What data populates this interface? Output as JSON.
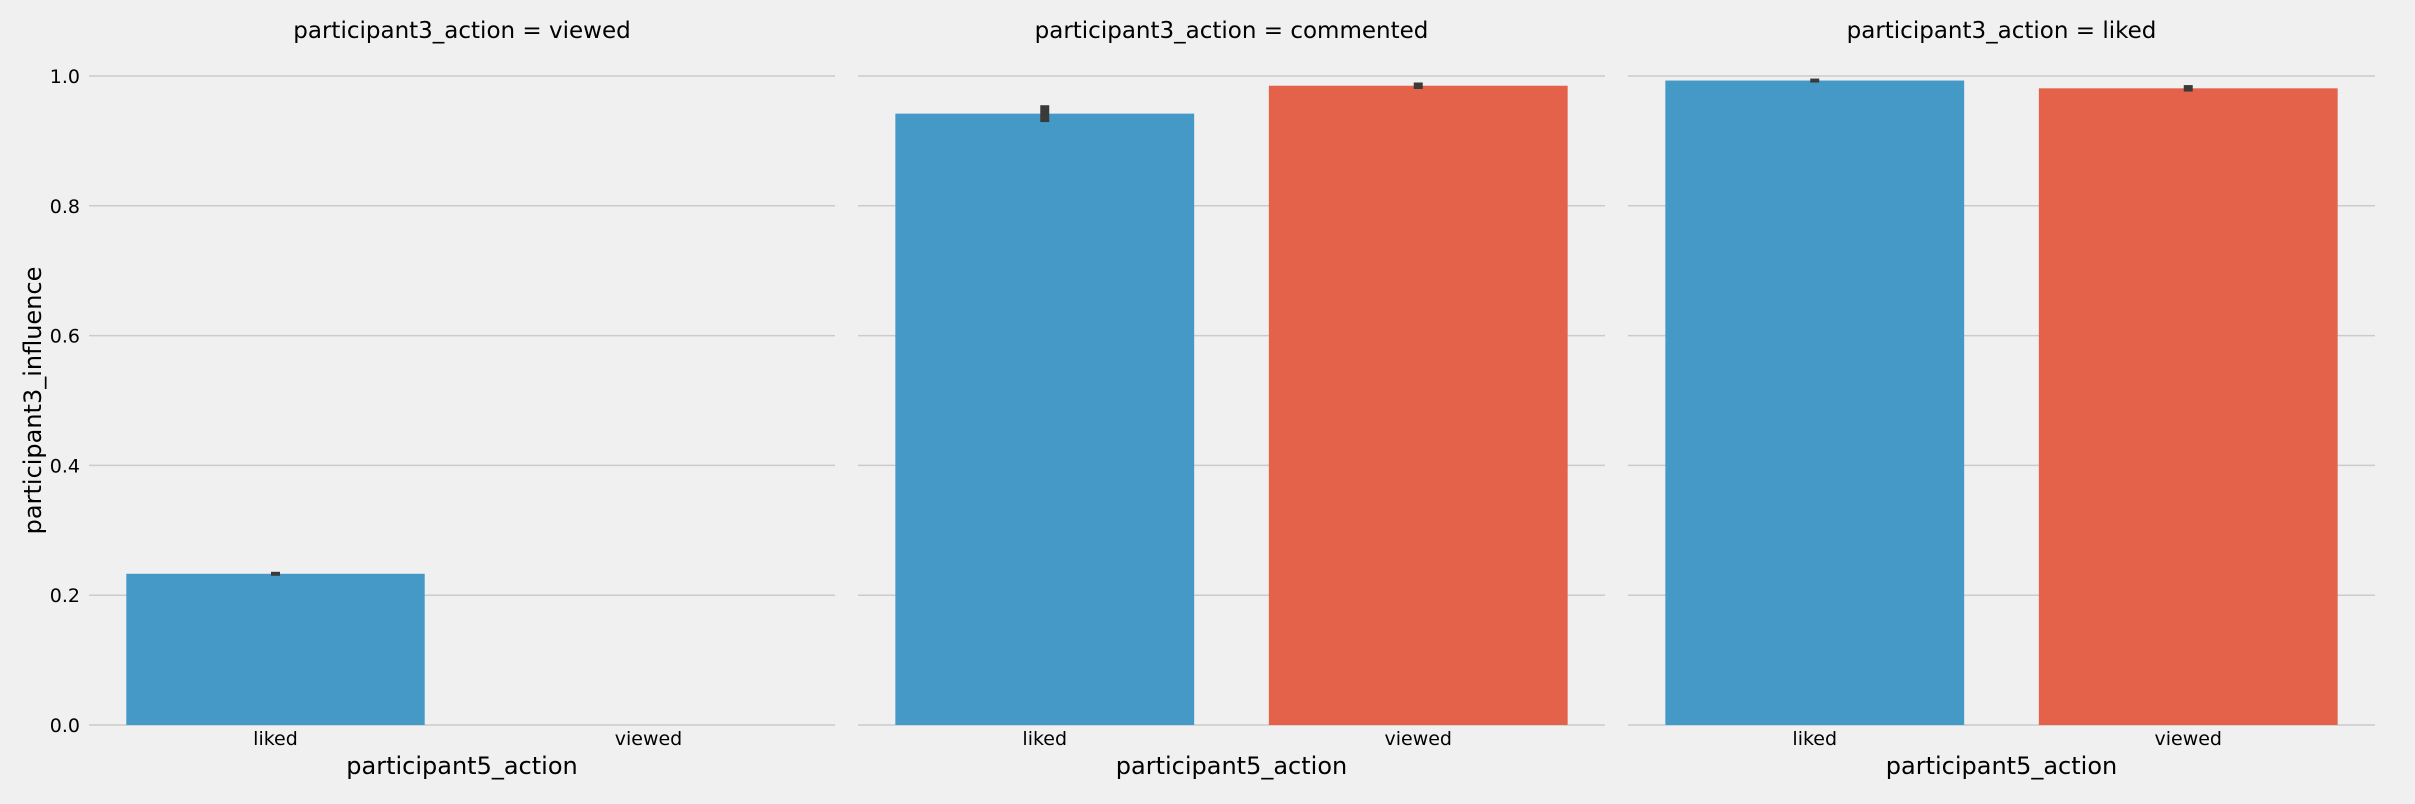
{
  "chart_data": {
    "type": "bar",
    "ylabel": "participant3_influence",
    "xlabel": "participant5_action",
    "ylim": [
      0,
      1.05
    ],
    "yticks": [
      "0.0",
      "0.2",
      "0.4",
      "0.6",
      "0.8",
      "1.0"
    ],
    "categories": [
      "liked",
      "viewed"
    ],
    "grid": true,
    "colors": {
      "liked": "#4499c7",
      "viewed": "#e4614a",
      "errorbar": "#3a3a3a",
      "background": "#f0f0f0"
    },
    "facets": [
      {
        "title": "participant3_action = viewed",
        "values": [
          0.233,
          null
        ],
        "errors": [
          [
            0.233,
            0.233
          ],
          null
        ]
      },
      {
        "title": "participant3_action = commented",
        "values": [
          0.942,
          0.985
        ],
        "errors": [
          [
            0.929,
            0.955
          ],
          [
            0.98,
            0.99
          ]
        ]
      },
      {
        "title": "participant3_action = liked",
        "values": [
          0.993,
          0.981
        ],
        "errors": [
          [
            0.991,
            0.995
          ],
          [
            0.976,
            0.986
          ]
        ]
      }
    ]
  }
}
